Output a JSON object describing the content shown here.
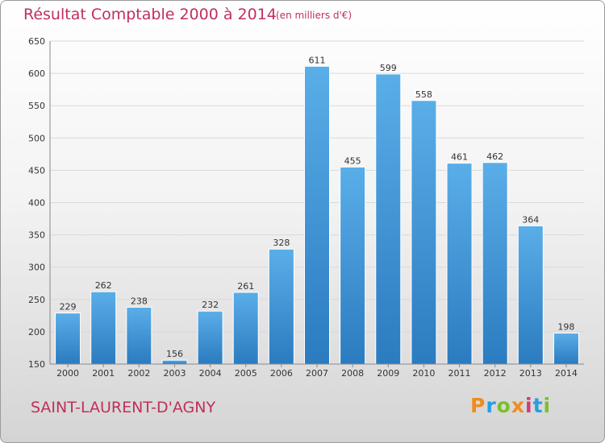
{
  "title": "Résultat Comptable 2000 à 2014",
  "subtitle": "(en milliers d'€)",
  "city": "SAINT-LAURENT-D'AGNY",
  "logo": {
    "letters": [
      "P",
      "r",
      "o",
      "x",
      "i",
      "t",
      "i"
    ],
    "colors": [
      "#f08c1e",
      "#2a9de0",
      "#7dbf2a",
      "#f08c1e",
      "#d23a7a",
      "#2a9de0",
      "#7dbf2a"
    ]
  },
  "colors": {
    "bar_top": "#5aaee8",
    "bar_bottom": "#2b7bc0",
    "title": "#c0305a"
  },
  "chart_data": {
    "type": "bar",
    "categories": [
      "2000",
      "2001",
      "2002",
      "2003",
      "2004",
      "2005",
      "2006",
      "2007",
      "2008",
      "2009",
      "2010",
      "2011",
      "2012",
      "2013",
      "2014"
    ],
    "values": [
      229,
      262,
      238,
      156,
      232,
      261,
      328,
      611,
      455,
      599,
      558,
      461,
      462,
      364,
      198
    ],
    "yticks": [
      150,
      200,
      250,
      300,
      350,
      400,
      450,
      500,
      550,
      600,
      650
    ],
    "ylim": [
      150,
      650
    ],
    "grid": true
  }
}
